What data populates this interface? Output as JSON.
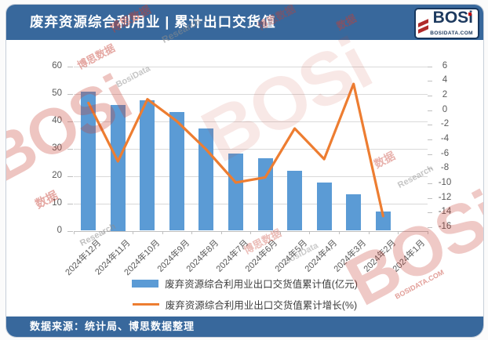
{
  "header": {
    "title": "废弃资源综合利用业 | 累计出口交货值",
    "logo": {
      "text": "BOSi",
      "site": "BOSIDATA.COM"
    }
  },
  "footer": {
    "source": "数据来源：统计局、博思数据整理"
  },
  "watermark": {
    "logo": "BOSi",
    "cn": "博思数据",
    "data_cn": "数据",
    "research": "Research",
    "bosidata": "BosiData",
    "site": "BOSIDATA.COM"
  },
  "colors": {
    "header_bar": "#38689C",
    "bar": "#5B9BD5",
    "line": "#ED7D31",
    "axis_text": "#595959",
    "gridline": "#D9D9D9",
    "watermark_red": "#C63E32"
  },
  "chart_data": {
    "type": "bar",
    "combo": "bar+line",
    "title": "废弃资源综合利用业 | 累计出口交货值",
    "categories": [
      "2024年12月",
      "2024年11月",
      "2024年10月",
      "2024年9月",
      "2024年8月",
      "2024年7月",
      "2024年6月",
      "2024年5月",
      "2024年4月",
      "2024年3月",
      "2024年2月",
      "2024年1月"
    ],
    "series": [
      {
        "name": "废弃资源综合利用业出口交货值累计值(亿元)",
        "type": "bar",
        "axis": "left",
        "color": "#5B9BD5",
        "values": [
          50.8,
          46.0,
          47.7,
          43.4,
          37.4,
          28.1,
          26.4,
          21.9,
          17.7,
          13.4,
          6.9,
          null
        ]
      },
      {
        "name": "废弃资源综合利用业出口交货值累计增长(%)",
        "type": "line",
        "axis": "right",
        "color": "#ED7D31",
        "values": [
          1.0,
          -7.0,
          1.5,
          -1.5,
          -5.4,
          -9.9,
          -9.2,
          -2.5,
          -6.7,
          3.6,
          -14.5,
          null
        ]
      }
    ],
    "left_axis": {
      "min": 0,
      "max": 60,
      "step": 10
    },
    "right_axis": {
      "min": -16,
      "max": 6,
      "step": 2
    },
    "grid": true,
    "legend_position": "bottom"
  }
}
